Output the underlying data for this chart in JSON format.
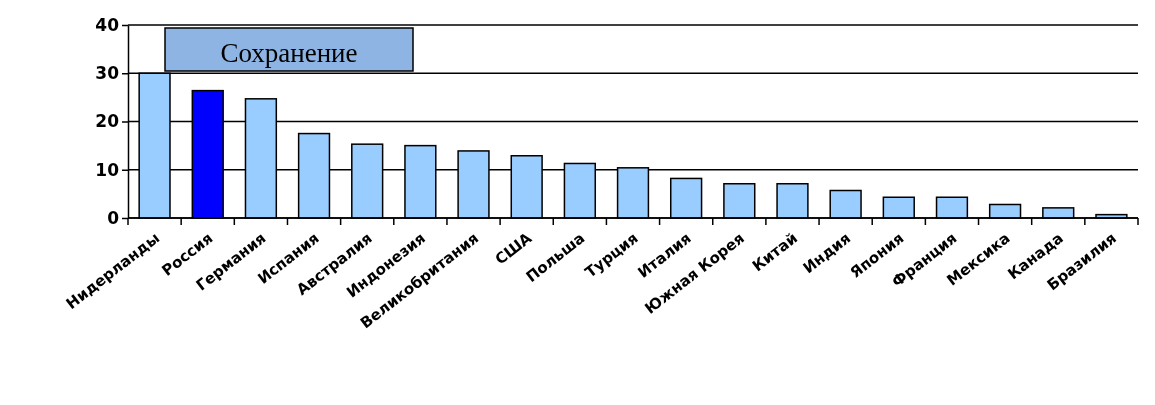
{
  "chart_data": {
    "type": "bar",
    "categories": [
      "Нидерланды",
      "Россия",
      "Германия",
      "Испания",
      "Австралия",
      "Индонезия",
      "Великобритания",
      "США",
      "Польша",
      "Турция",
      "Италия",
      "Южная Корея",
      "Китай",
      "Индия",
      "Япония",
      "Франция",
      "Мексика",
      "Канада",
      "Бразилия"
    ],
    "values": [
      30,
      26.4,
      24.7,
      17.5,
      15.3,
      15.0,
      13.9,
      12.9,
      11.3,
      10.4,
      8.2,
      7.1,
      7.1,
      5.7,
      4.3,
      4.3,
      2.8,
      2.1,
      0.7
    ],
    "colors": [
      "#99ccff",
      "#0000ff",
      "#99ccff",
      "#99ccff",
      "#99ccff",
      "#99ccff",
      "#99ccff",
      "#99ccff",
      "#99ccff",
      "#99ccff",
      "#99ccff",
      "#99ccff",
      "#99ccff",
      "#99ccff",
      "#99ccff",
      "#99ccff",
      "#99ccff",
      "#99ccff",
      "#99ccff"
    ],
    "ylim": [
      0,
      40
    ],
    "yticks": [
      0,
      10,
      20,
      30,
      40
    ],
    "grid": "y",
    "annotations": [
      "Сохранение"
    ]
  }
}
